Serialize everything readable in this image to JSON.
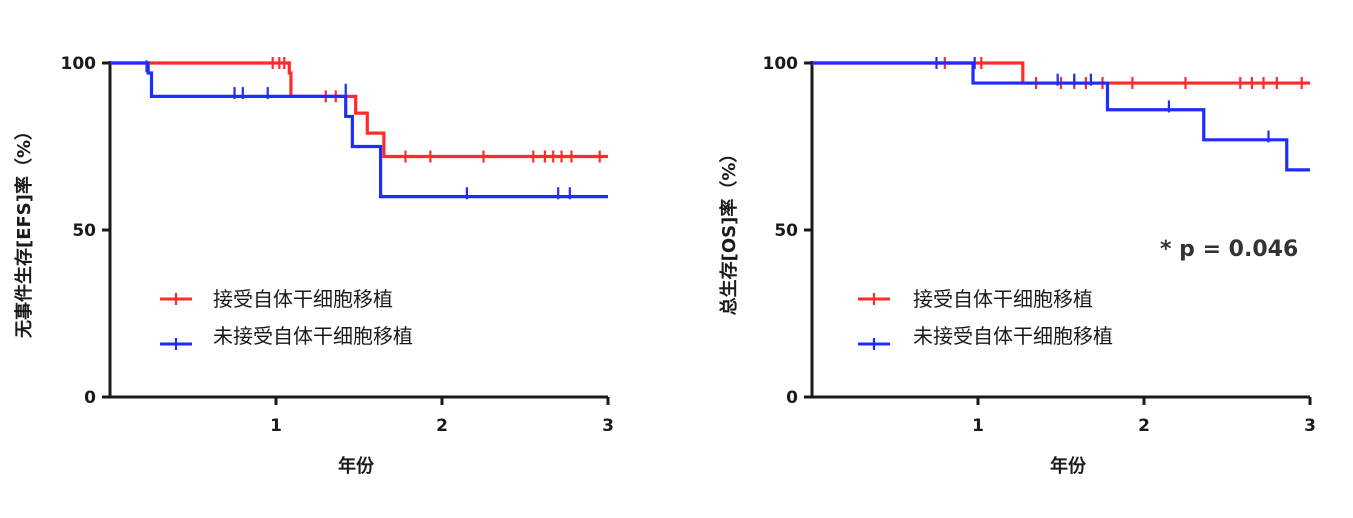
{
  "chart_data": [
    {
      "type": "line",
      "ylabel": "无事件生存[EFS]率（%）",
      "xlabel": "年份",
      "xlim": [
        0,
        3
      ],
      "ylim": [
        0,
        100
      ],
      "xticks": [
        "1",
        "2",
        "3"
      ],
      "yticks": [
        "0",
        "50",
        "100"
      ],
      "legend_position": "lower-left",
      "series": [
        {
          "name": "接受自体干细胞移植",
          "color": "#ff2a2a",
          "x": [
            0,
            1.08,
            1.09,
            1.44,
            1.48,
            1.55,
            1.65,
            3.0
          ],
          "y": [
            100,
            97,
            90,
            90,
            85,
            79,
            72,
            72
          ],
          "censored": [
            [
              0.98,
              100
            ],
            [
              1.02,
              100
            ],
            [
              1.05,
              100
            ],
            [
              1.3,
              90
            ],
            [
              1.36,
              90
            ],
            [
              1.78,
              72
            ],
            [
              1.93,
              72
            ],
            [
              2.25,
              72
            ],
            [
              2.55,
              72
            ],
            [
              2.62,
              72
            ],
            [
              2.67,
              72
            ],
            [
              2.72,
              72
            ],
            [
              2.78,
              72
            ],
            [
              2.95,
              72
            ]
          ]
        },
        {
          "name": "未接受自体干细胞移植",
          "color": "#1f2cff",
          "x": [
            0,
            0.23,
            0.25,
            1.4,
            1.42,
            1.46,
            1.63,
            3.0
          ],
          "y": [
            100,
            97,
            90,
            90,
            84,
            75,
            60,
            60
          ],
          "censored": [
            [
              0.22,
              99
            ],
            [
              0.75,
              91
            ],
            [
              0.8,
              91
            ],
            [
              0.95,
              91
            ],
            [
              1.42,
              92
            ],
            [
              2.15,
              61
            ],
            [
              2.7,
              61
            ],
            [
              2.77,
              61
            ]
          ]
        }
      ]
    },
    {
      "type": "line",
      "ylabel": "总生存[OS]率（%）",
      "xlabel": "年份",
      "xlim": [
        0,
        3
      ],
      "ylim": [
        0,
        100
      ],
      "xticks": [
        "1",
        "2",
        "3"
      ],
      "yticks": [
        "0",
        "50",
        "100"
      ],
      "annotation": "* p = 0.046",
      "legend_position": "lower-left",
      "series": [
        {
          "name": "接受自体干细胞移植",
          "color": "#ff2a2a",
          "x": [
            0,
            1.27,
            3.0
          ],
          "y": [
            100,
            94,
            94
          ],
          "censored": [
            [
              0.8,
              100
            ],
            [
              1.02,
              100
            ],
            [
              1.35,
              94
            ],
            [
              1.5,
              94
            ],
            [
              1.58,
              94
            ],
            [
              1.65,
              94
            ],
            [
              1.75,
              94
            ],
            [
              1.93,
              94
            ],
            [
              2.25,
              94
            ],
            [
              2.58,
              94
            ],
            [
              2.65,
              94
            ],
            [
              2.72,
              94
            ],
            [
              2.8,
              94
            ],
            [
              2.95,
              94
            ]
          ]
        },
        {
          "name": "未接受自体干细胞移植",
          "color": "#1f2cff",
          "x": [
            0,
            0.97,
            1.78,
            2.36,
            2.86,
            3.0
          ],
          "y": [
            100,
            94,
            86,
            77,
            68,
            68
          ],
          "censored": [
            [
              0.75,
              100
            ],
            [
              0.98,
              100
            ],
            [
              1.48,
              95
            ],
            [
              1.58,
              95
            ],
            [
              1.68,
              95
            ],
            [
              2.15,
              87
            ],
            [
              2.75,
              78
            ]
          ]
        }
      ]
    }
  ]
}
